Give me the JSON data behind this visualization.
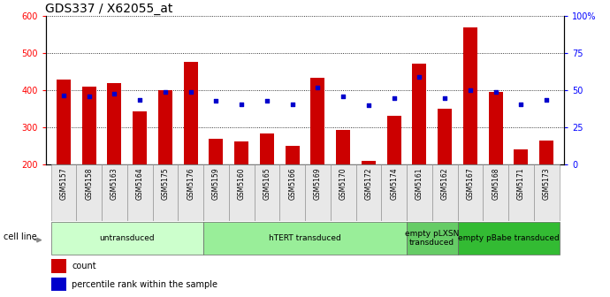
{
  "title": "GDS337 / X62055_at",
  "samples": [
    "GSM5157",
    "GSM5158",
    "GSM5163",
    "GSM5164",
    "GSM5175",
    "GSM5176",
    "GSM5159",
    "GSM5160",
    "GSM5165",
    "GSM5166",
    "GSM5169",
    "GSM5170",
    "GSM5172",
    "GSM5174",
    "GSM5161",
    "GSM5162",
    "GSM5167",
    "GSM5168",
    "GSM5171",
    "GSM5173"
  ],
  "counts": [
    430,
    410,
    420,
    345,
    400,
    478,
    270,
    262,
    284,
    252,
    435,
    295,
    210,
    332,
    472,
    350,
    570,
    396,
    242,
    265
  ],
  "percentiles": [
    47,
    46,
    48,
    44,
    49,
    49,
    43,
    41,
    43,
    41,
    52,
    46,
    40,
    45,
    59,
    45,
    50,
    49,
    41,
    44
  ],
  "bar_color": "#cc0000",
  "dot_color": "#0000cc",
  "ylim_left": [
    200,
    600
  ],
  "ylim_right": [
    0,
    100
  ],
  "yticks_left": [
    200,
    300,
    400,
    500,
    600
  ],
  "yticks_right": [
    0,
    25,
    50,
    75,
    100
  ],
  "ytick_labels_right": [
    "0",
    "25",
    "50",
    "75",
    "100%"
  ],
  "groups": [
    {
      "label": "untransduced",
      "start": 0,
      "end": 6,
      "color": "#ccffcc"
    },
    {
      "label": "hTERT transduced",
      "start": 6,
      "end": 14,
      "color": "#99ee99"
    },
    {
      "label": "empty pLXSN\ntransduced",
      "start": 14,
      "end": 16,
      "color": "#66cc66"
    },
    {
      "label": "empty pBabe transduced",
      "start": 16,
      "end": 20,
      "color": "#33bb33"
    }
  ],
  "cell_line_label": "cell line",
  "legend_count_label": "count",
  "legend_percentile_label": "percentile rank within the sample",
  "title_fontsize": 10,
  "tick_fontsize": 7,
  "bar_width": 0.55
}
